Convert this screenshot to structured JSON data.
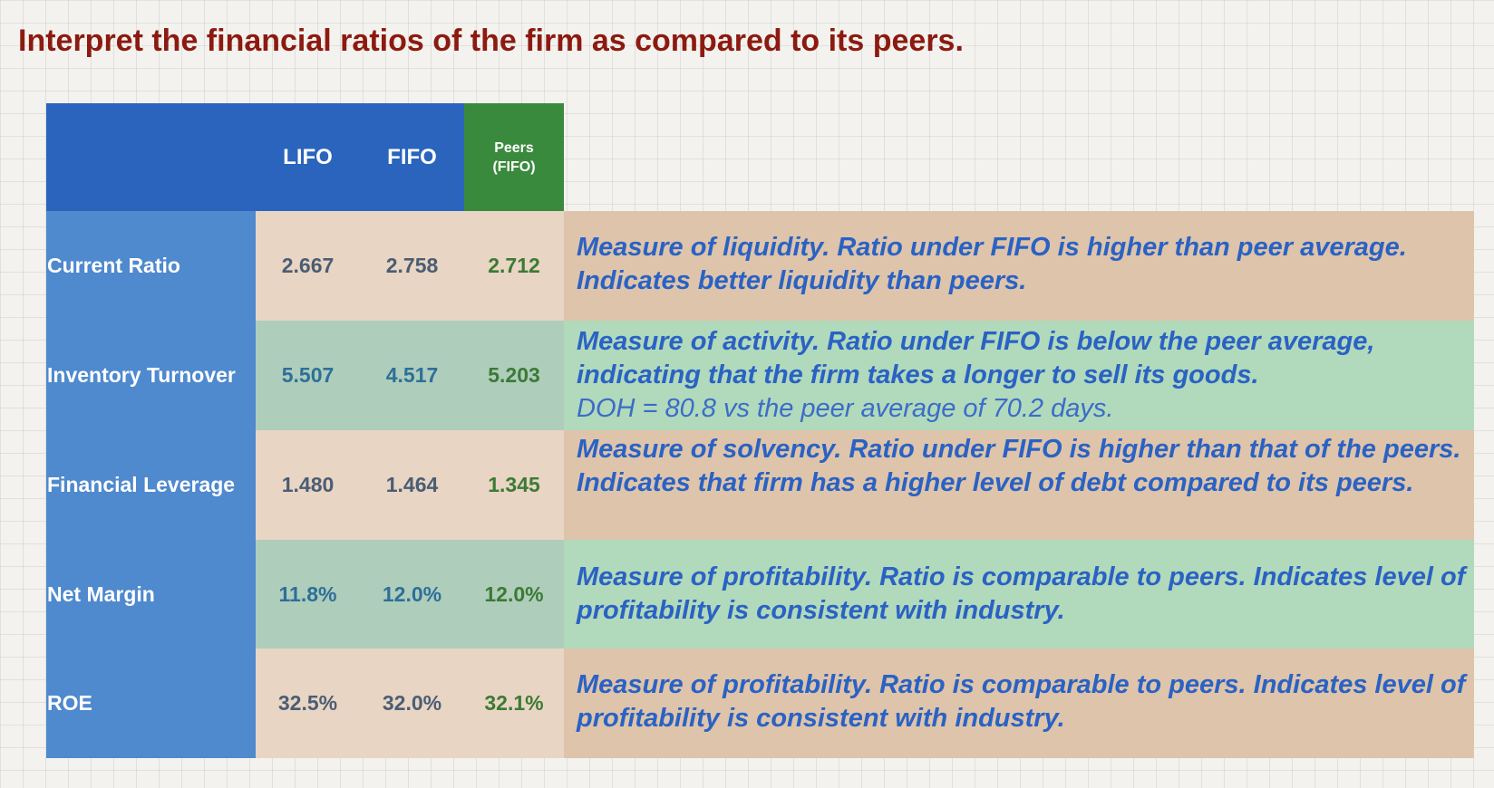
{
  "title": "Interpret the financial ratios of the firm as compared to its peers.",
  "table": {
    "headers": {
      "lifo": "LIFO",
      "fifo": "FIFO",
      "peers": "Peers\n(FIFO)"
    },
    "rows": [
      {
        "label": "Current Ratio",
        "lifo": "2.667",
        "fifo": "2.758",
        "peers": "2.712",
        "note": "Measure of liquidity.  Ratio under FIFO is higher than peer average. Indicates better liquidity than peers.",
        "note_sub": ""
      },
      {
        "label": "Inventory Turnover",
        "lifo": "5.507",
        "fifo": "4.517",
        "peers": "5.203",
        "note": "Measure of activity.  Ratio under FIFO is below the peer average, indicating that the firm takes a longer to sell its goods.",
        "note_sub": "DOH = 80.8 vs the peer average of 70.2 days."
      },
      {
        "label": "Financial Leverage",
        "lifo": "1.480",
        "fifo": "1.464",
        "peers": "1.345",
        "note": "Measure of solvency. Ratio under FIFO is higher than that of the peers.  Indicates that firm has a higher level of debt compared to its peers.",
        "note_sub": ""
      },
      {
        "label": "Net Margin",
        "lifo": "11.8%",
        "fifo": "12.0%",
        "peers": "12.0%",
        "note": "Measure of profitability.  Ratio is comparable to peers. Indicates level of profitability is consistent with industry.",
        "note_sub": ""
      },
      {
        "label": "ROE",
        "lifo": "32.5%",
        "fifo": "32.0%",
        "peers": "32.1%",
        "note": "Measure of profitability.  Ratio is comparable to peers. Indicates level of profitability is consistent with industry.",
        "note_sub": ""
      }
    ]
  },
  "colors": {
    "title": "#8c1a10",
    "header_blue": "#2a64bd",
    "header_green": "#3a8a3d",
    "row_label_column": "#4f89ce",
    "band_tan": "#e8d5c3",
    "band_green": "#aecdbb",
    "note_text": "#2a62c4"
  }
}
